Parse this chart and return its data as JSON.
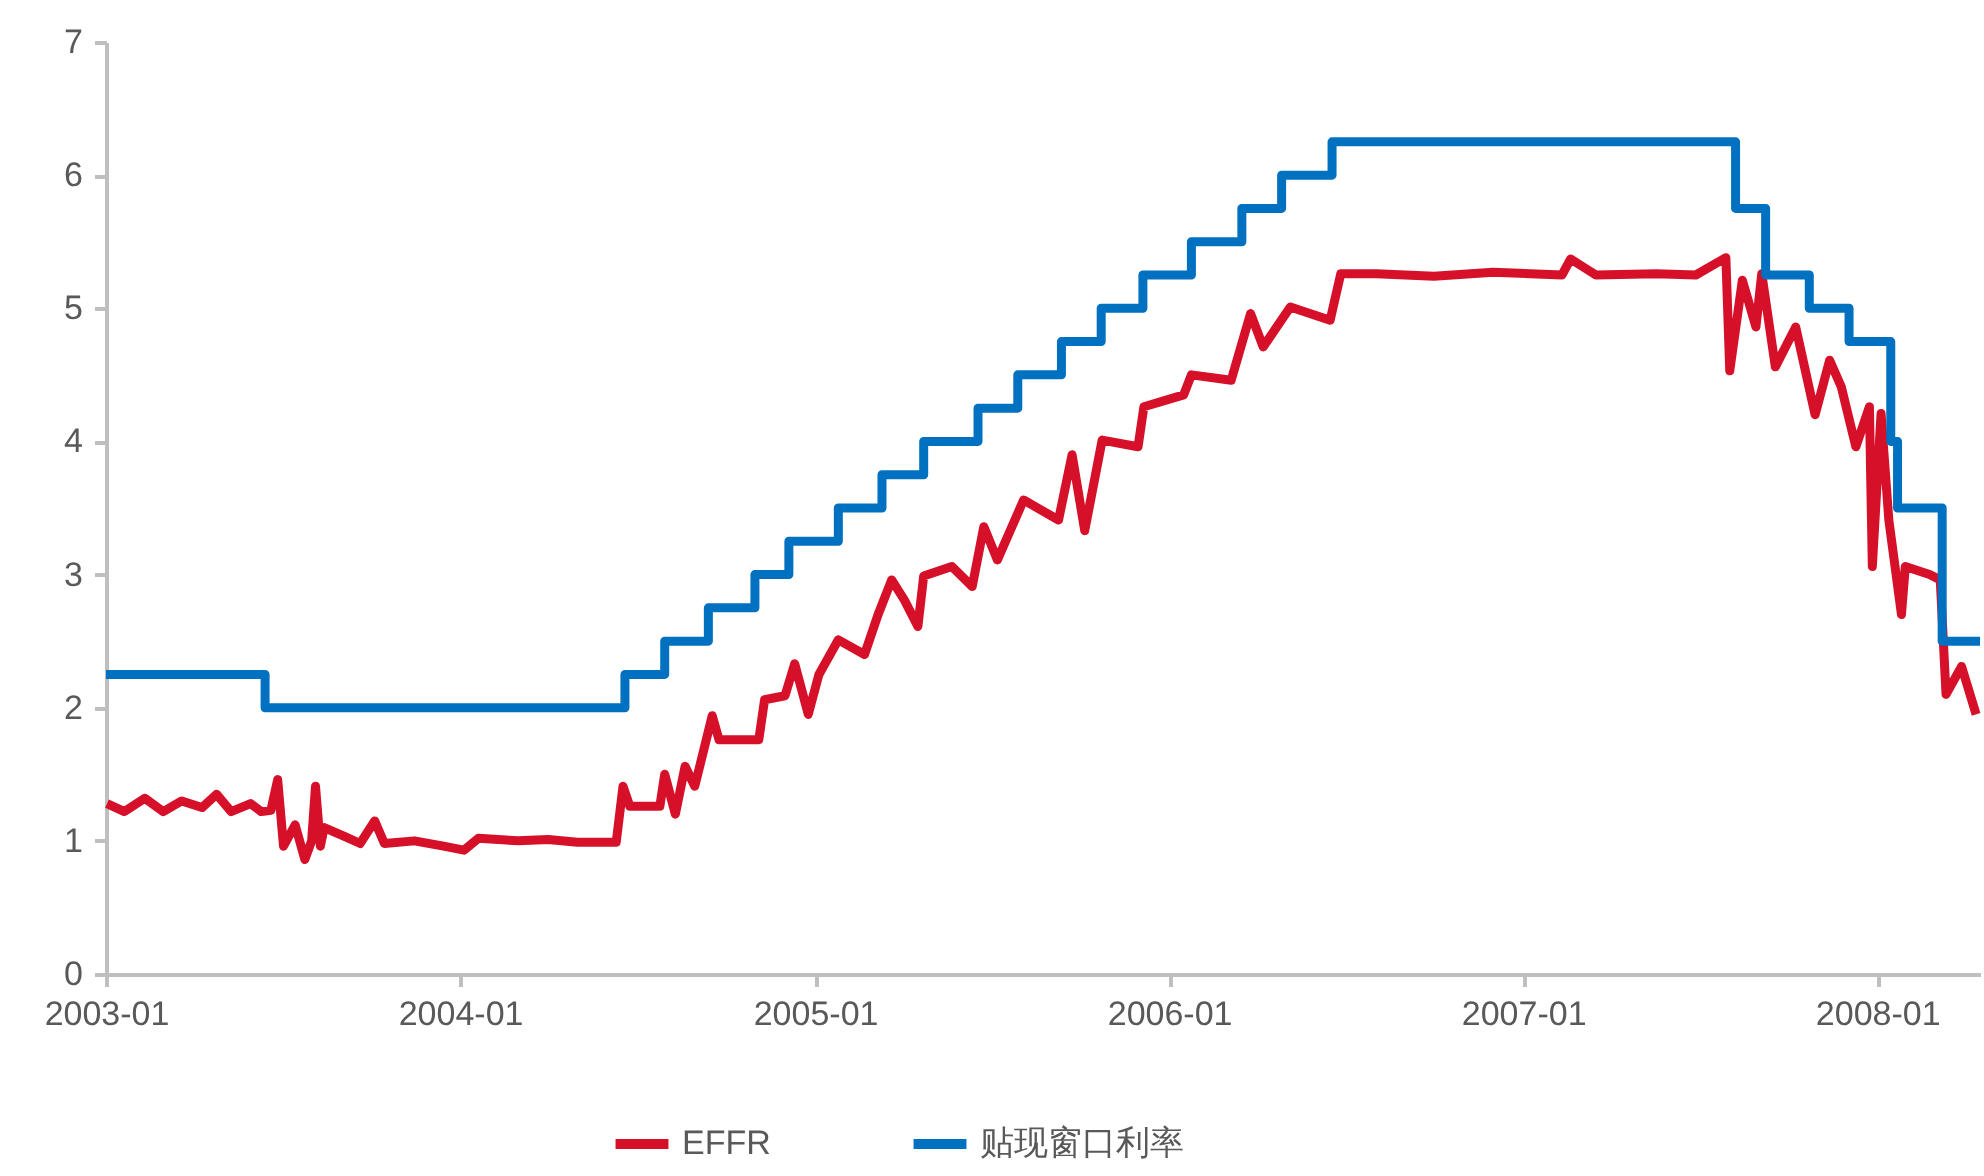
{
  "chart_data": {
    "type": "line",
    "xlim": [
      "2003-01-01",
      "2008-04-16"
    ],
    "xticks": [
      "2003-01",
      "2004-01",
      "2005-01",
      "2006-01",
      "2007-01",
      "2008-01"
    ],
    "ylim": [
      0,
      7
    ],
    "yticks": [
      0,
      1,
      2,
      3,
      4,
      5,
      6,
      7
    ],
    "grid": false,
    "legend": "bottom",
    "line_style": "solid",
    "marker": "none",
    "series": [
      {
        "name": "EFFR",
        "color": "#d7102a",
        "x": [
          "2003-01-02",
          "2003-01-20",
          "2003-02-10",
          "2003-03-01",
          "2003-03-20",
          "2003-04-10",
          "2003-04-25",
          "2003-05-10",
          "2003-05-30",
          "2003-06-10",
          "2003-06-20",
          "2003-06-27",
          "2003-07-03",
          "2003-07-15",
          "2003-07-25",
          "2003-08-01",
          "2003-08-05",
          "2003-08-10",
          "2003-08-14",
          "2003-09-05",
          "2003-09-20",
          "2003-10-05",
          "2003-10-15",
          "2003-11-15",
          "2003-12-15",
          "2004-01-05",
          "2004-01-20",
          "2004-03-01",
          "2004-04-01",
          "2004-05-01",
          "2004-06-10",
          "2004-06-17",
          "2004-06-24",
          "2004-07-02",
          "2004-07-25",
          "2004-07-30",
          "2004-08-10",
          "2004-08-20",
          "2004-08-30",
          "2004-09-17",
          "2004-09-24",
          "2004-11-04",
          "2004-11-10",
          "2004-12-01",
          "2004-12-11",
          "2004-12-25",
          "2005-01-05",
          "2005-01-25",
          "2005-02-21",
          "2005-03-07",
          "2005-03-21",
          "2005-04-03",
          "2005-04-17",
          "2005-04-23",
          "2005-05-22",
          "2005-06-12",
          "2005-06-24",
          "2005-07-08",
          "2005-08-04",
          "2005-09-09",
          "2005-09-23",
          "2005-10-06",
          "2005-10-24",
          "2005-11-30",
          "2005-12-06",
          "2006-01-16",
          "2006-01-24",
          "2006-03-06",
          "2006-03-26",
          "2006-04-08",
          "2006-05-06",
          "2006-06-16",
          "2006-06-27",
          "2006-08-03",
          "2006-10-01",
          "2006-12-01",
          "2007-02-10",
          "2007-02-19",
          "2007-03-17",
          "2007-05-18",
          "2007-06-28",
          "2007-07-29",
          "2007-08-02",
          "2007-08-15",
          "2007-08-29",
          "2007-09-04",
          "2007-09-18",
          "2007-10-09",
          "2007-10-29",
          "2007-11-13",
          "2007-11-25",
          "2007-12-10",
          "2007-12-24",
          "2007-12-27",
          "2008-01-05",
          "2008-01-13",
          "2008-01-26",
          "2008-01-30",
          "2008-02-24",
          "2008-03-06",
          "2008-03-12",
          "2008-03-28",
          "2008-04-12"
        ],
        "values": [
          1.28,
          1.22,
          1.32,
          1.22,
          1.3,
          1.25,
          1.35,
          1.22,
          1.28,
          1.22,
          1.23,
          1.46,
          0.96,
          1.12,
          0.86,
          1.0,
          1.41,
          0.96,
          1.1,
          1.03,
          0.98,
          1.15,
          0.98,
          1.0,
          0.96,
          0.93,
          1.02,
          1.0,
          1.01,
          0.99,
          0.99,
          1.41,
          1.26,
          1.26,
          1.26,
          1.5,
          1.2,
          1.56,
          1.41,
          1.94,
          1.76,
          1.76,
          2.06,
          2.09,
          2.33,
          1.95,
          2.25,
          2.51,
          2.4,
          2.7,
          2.96,
          2.81,
          2.61,
          2.99,
          3.06,
          2.91,
          3.36,
          3.11,
          3.56,
          3.41,
          3.9,
          3.33,
          4.01,
          3.96,
          4.26,
          4.35,
          4.5,
          4.46,
          4.96,
          4.71,
          5.01,
          4.91,
          5.26,
          5.26,
          5.24,
          5.27,
          5.25,
          5.37,
          5.25,
          5.26,
          5.25,
          5.38,
          4.53,
          5.21,
          4.86,
          5.26,
          4.56,
          4.86,
          4.2,
          4.61,
          4.41,
          3.96,
          4.26,
          3.06,
          4.21,
          3.41,
          2.7,
          3.06,
          3.0,
          2.96,
          2.1,
          2.31,
          1.95
        ]
      },
      {
        "name": "贴现窗口利率",
        "type": "step",
        "color": "#0070c0",
        "x": [
          "2003-01-01",
          "2003-06-14",
          "2004-06-19",
          "2004-07-30",
          "2004-09-13",
          "2004-10-31",
          "2004-12-05",
          "2005-01-25",
          "2005-03-11",
          "2005-04-23",
          "2005-06-18",
          "2005-07-29",
          "2005-09-12",
          "2005-10-23",
          "2005-12-05",
          "2006-01-24",
          "2006-03-17",
          "2006-04-27",
          "2006-06-18",
          "2007-08-08",
          "2007-09-08",
          "2007-10-23",
          "2007-12-03",
          "2008-01-15",
          "2008-01-22",
          "2008-03-08",
          "2008-04-16"
        ],
        "values": [
          2.25,
          2.0,
          2.25,
          2.5,
          2.75,
          3.0,
          3.25,
          3.5,
          3.75,
          4.0,
          4.25,
          4.5,
          4.75,
          5.0,
          5.25,
          5.5,
          5.75,
          6.0,
          6.25,
          5.75,
          5.25,
          5.0,
          4.75,
          4.0,
          3.5,
          2.5,
          2.5
        ]
      }
    ]
  }
}
